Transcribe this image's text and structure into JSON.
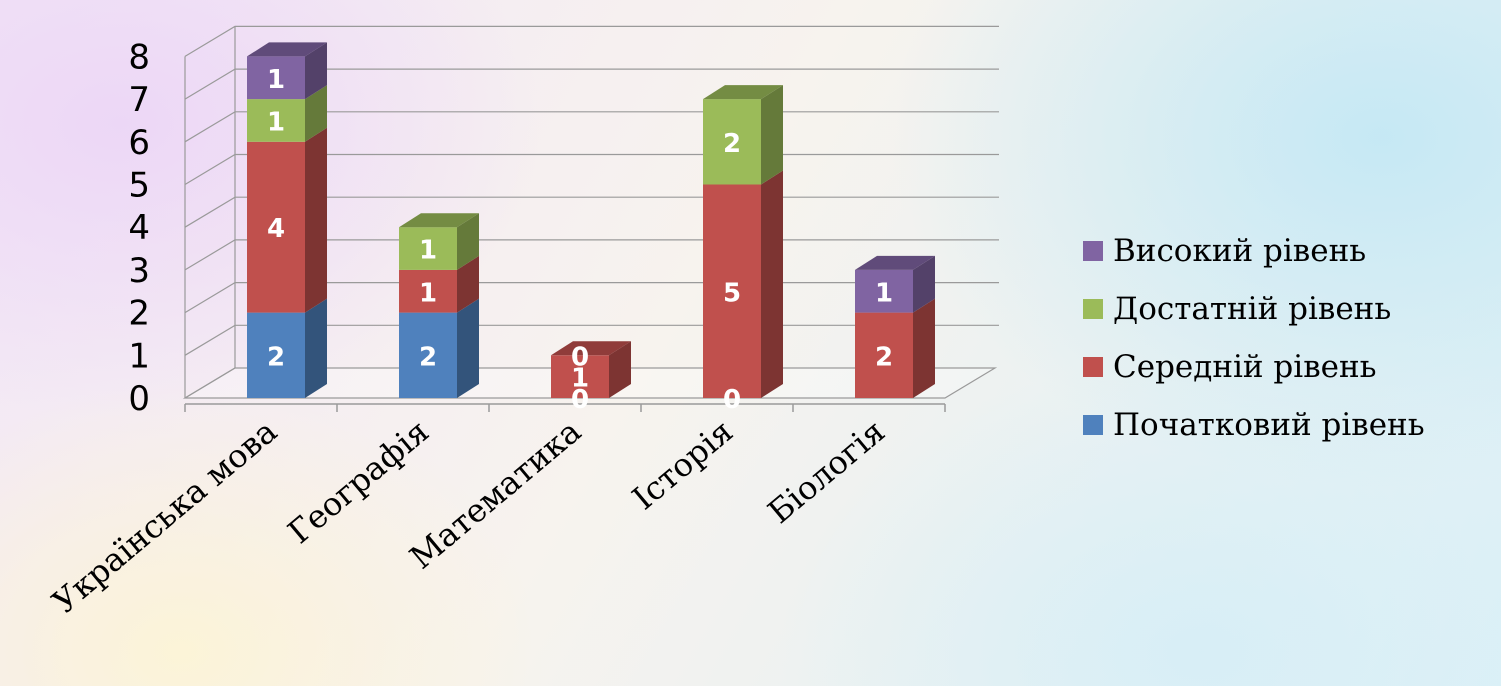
{
  "chart_data": {
    "type": "bar",
    "stacked": true,
    "three_d": true,
    "categories": [
      "Українська мова",
      "Географія",
      "Математика",
      "Історія",
      "Біологія"
    ],
    "series": [
      {
        "name": "Початковий рівень",
        "color": "#4f81bd",
        "values": [
          2,
          2,
          0,
          0,
          0
        ],
        "labels": [
          "2",
          "2",
          "0",
          "0",
          ""
        ]
      },
      {
        "name": "Середній рівень",
        "color": "#c0504d",
        "values": [
          4,
          1,
          1,
          5,
          2
        ],
        "labels": [
          "4",
          "1",
          "1",
          "5",
          "2"
        ]
      },
      {
        "name": "Достатній рівень",
        "color": "#9bbb59",
        "values": [
          1,
          1,
          0,
          2,
          0
        ],
        "labels": [
          "1",
          "1",
          "0",
          "2",
          ""
        ]
      },
      {
        "name": "Високий рівень",
        "color": "#8064a2",
        "values": [
          1,
          0,
          0,
          0,
          1
        ],
        "labels": [
          "1",
          "",
          "",
          "",
          "1"
        ]
      }
    ],
    "y_ticks": [
      "0",
      "1",
      "2",
      "3",
      "4",
      "5",
      "6",
      "7",
      "8"
    ],
    "ylim": [
      0,
      8
    ],
    "grid": true,
    "legend_position": "right"
  }
}
